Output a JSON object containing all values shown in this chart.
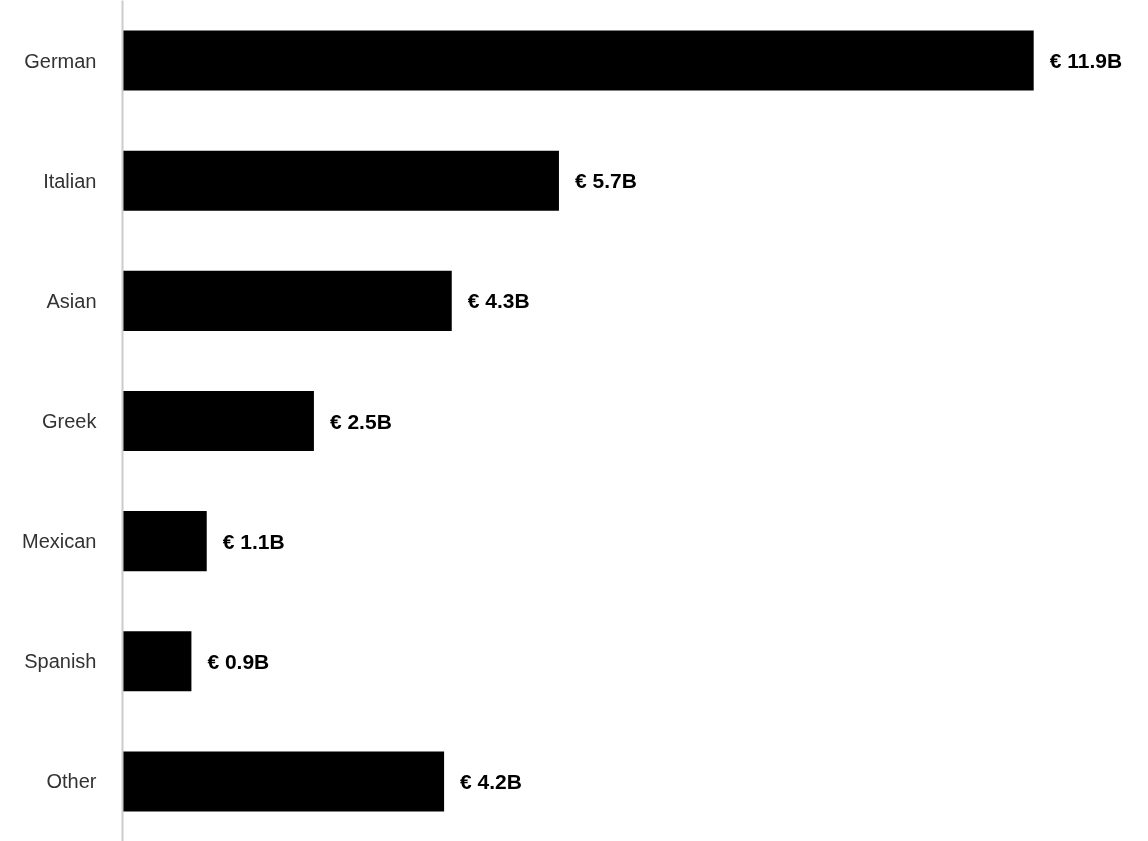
{
  "chart_data": {
    "type": "bar",
    "orientation": "horizontal",
    "categories": [
      "German",
      "Italian",
      "Asian",
      "Greek",
      "Mexican",
      "Spanish",
      "Other"
    ],
    "values": [
      11.9,
      5.7,
      4.3,
      2.5,
      1.1,
      0.9,
      4.2
    ],
    "value_labels": [
      "€ 11.9B",
      "€ 5.7B",
      "€ 4.3B",
      "€ 2.5B",
      "€ 1.1B",
      "€ 0.9B",
      "€ 4.2B"
    ],
    "color": "#000000",
    "tick_labels": "y"
  }
}
